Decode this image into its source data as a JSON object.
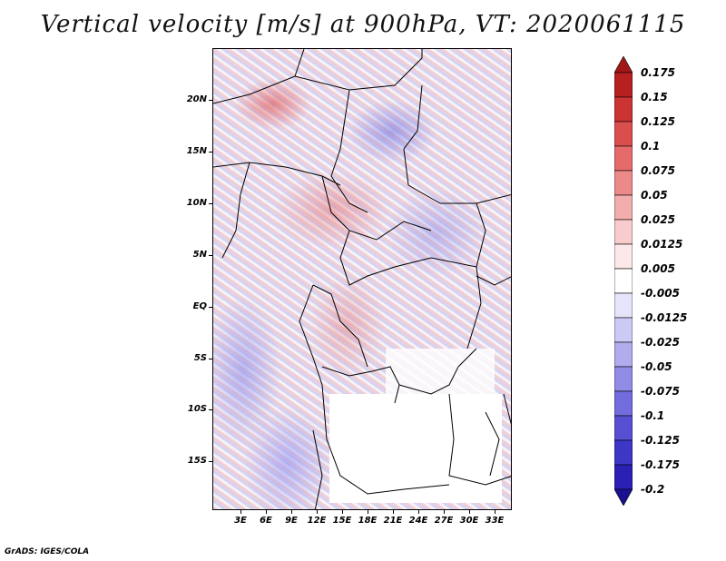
{
  "title": "Vertical velocity [m/s] at 900hPa, VT: 2020061115",
  "credit": "GrADS: IGES/COLA",
  "map": {
    "lat_labels": [
      "20N",
      "15N",
      "10N",
      "5N",
      "EQ",
      "5S",
      "10S",
      "15S"
    ],
    "lon_labels": [
      "3E",
      "6E",
      "9E",
      "12E",
      "15E",
      "18E",
      "21E",
      "24E",
      "27E",
      "30E",
      "33E"
    ]
  },
  "colorbar": {
    "labels": [
      "0.175",
      "0.15",
      "0.125",
      "0.1",
      "0.075",
      "0.05",
      "0.025",
      "0.0125",
      "0.005",
      "-0.005",
      "-0.0125",
      "-0.025",
      "-0.05",
      "-0.075",
      "-0.1",
      "-0.125",
      "-0.175",
      "-0.2"
    ],
    "colors": [
      "#a01818",
      "#b72020",
      "#cc3333",
      "#db4e4e",
      "#e56b6b",
      "#ec8a8a",
      "#f3adad",
      "#f8cccc",
      "#fce8e8",
      "#ffffff",
      "#e6e4fa",
      "#cccaf5",
      "#b0acee",
      "#918ce6",
      "#726cdc",
      "#5850d2",
      "#3e36c6",
      "#2a20b4",
      "#1a1090"
    ]
  }
}
